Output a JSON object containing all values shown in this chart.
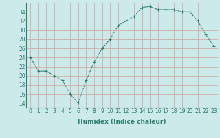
{
  "x": [
    0,
    1,
    2,
    3,
    4,
    5,
    6,
    7,
    8,
    9,
    10,
    11,
    12,
    13,
    14,
    15,
    16,
    17,
    18,
    19,
    20,
    21,
    22,
    23
  ],
  "y": [
    24,
    21,
    21,
    20,
    19,
    16,
    14,
    19,
    23,
    26,
    28,
    31,
    32,
    33,
    35,
    35.2,
    34.5,
    34.5,
    34.5,
    34,
    34,
    32,
    29,
    26.5
  ],
  "line_color": "#2e7d6e",
  "marker": "+",
  "marker_size": 3,
  "bg_color": "#cceaea",
  "grid_color": "#b0d0d0",
  "xlabel": "Humidex (Indice chaleur)",
  "xlim": [
    -0.5,
    23.5
  ],
  "ylim": [
    13,
    36
  ],
  "yticks": [
    14,
    16,
    18,
    20,
    22,
    24,
    26,
    28,
    30,
    32,
    34
  ],
  "xticks": [
    0,
    1,
    2,
    3,
    4,
    5,
    6,
    7,
    8,
    9,
    10,
    11,
    12,
    13,
    14,
    15,
    16,
    17,
    18,
    19,
    20,
    21,
    22,
    23
  ],
  "xtick_labels": [
    "0",
    "1",
    "2",
    "3",
    "4",
    "5",
    "6",
    "7",
    "8",
    "9",
    "10",
    "11",
    "12",
    "13",
    "14",
    "15",
    "16",
    "17",
    "18",
    "19",
    "20",
    "21",
    "22",
    "23"
  ],
  "label_fontsize": 6.5,
  "tick_fontsize": 5.5
}
